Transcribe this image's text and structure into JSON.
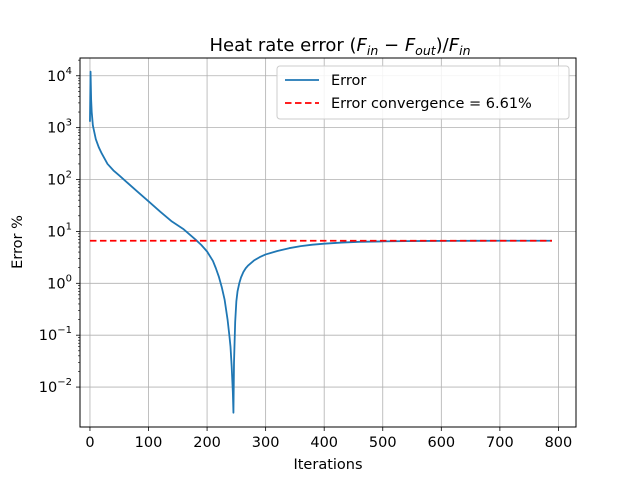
{
  "chart_data": {
    "type": "line",
    "title_prefix": "Heat rate error ",
    "title_math": "(F_in − F_out)/F_in",
    "xlabel": "Iterations",
    "ylabel": "Error %",
    "xlim": [
      -17,
      830
    ],
    "ylim": [
      0.0017,
      22000
    ],
    "yscale": "log",
    "grid": true,
    "legend_position": "upper right",
    "xticks": [
      0,
      100,
      200,
      300,
      400,
      500,
      600,
      700,
      800
    ],
    "yticks": [
      {
        "base": "10",
        "exp": "−2",
        "value": 0.01
      },
      {
        "base": "10",
        "exp": "−1",
        "value": 0.1
      },
      {
        "base": "10",
        "exp": "0",
        "value": 1
      },
      {
        "base": "10",
        "exp": "1",
        "value": 10
      },
      {
        "base": "10",
        "exp": "2",
        "value": 100
      },
      {
        "base": "10",
        "exp": "3",
        "value": 1000
      },
      {
        "base": "10",
        "exp": "4",
        "value": 10000
      }
    ],
    "series": [
      {
        "name": "Error",
        "color": "#1f77b4",
        "style": "solid",
        "x": [
          0,
          1,
          2,
          3,
          5,
          10,
          15,
          20,
          30,
          40,
          50,
          60,
          80,
          100,
          120,
          140,
          160,
          180,
          190,
          200,
          210,
          215,
          220,
          225,
          230,
          235,
          238,
          240,
          242,
          244,
          245,
          246,
          248,
          250,
          252,
          255,
          258,
          262,
          266,
          270,
          280,
          290,
          300,
          320,
          340,
          360,
          380,
          400,
          430,
          460,
          500,
          540,
          580,
          620,
          660,
          700,
          740,
          789
        ],
        "y": [
          1300,
          12000,
          3500,
          2000,
          1100,
          600,
          420,
          320,
          200,
          150,
          120,
          95,
          60,
          38,
          24,
          15.5,
          11,
          7,
          5.5,
          4.1,
          2.7,
          1.95,
          1.35,
          0.85,
          0.48,
          0.2,
          0.1,
          0.06,
          0.025,
          0.008,
          0.0032,
          0.03,
          0.18,
          0.45,
          0.7,
          1.0,
          1.3,
          1.65,
          1.95,
          2.2,
          2.75,
          3.2,
          3.6,
          4.2,
          4.75,
          5.2,
          5.55,
          5.8,
          6.1,
          6.3,
          6.42,
          6.5,
          6.55,
          6.58,
          6.59,
          6.6,
          6.61,
          6.61
        ]
      },
      {
        "name": "Error convergence = 6.61%",
        "color": "#ff0000",
        "style": "dashed",
        "x": [
          0,
          789
        ],
        "y": [
          6.61,
          6.61
        ]
      }
    ]
  }
}
